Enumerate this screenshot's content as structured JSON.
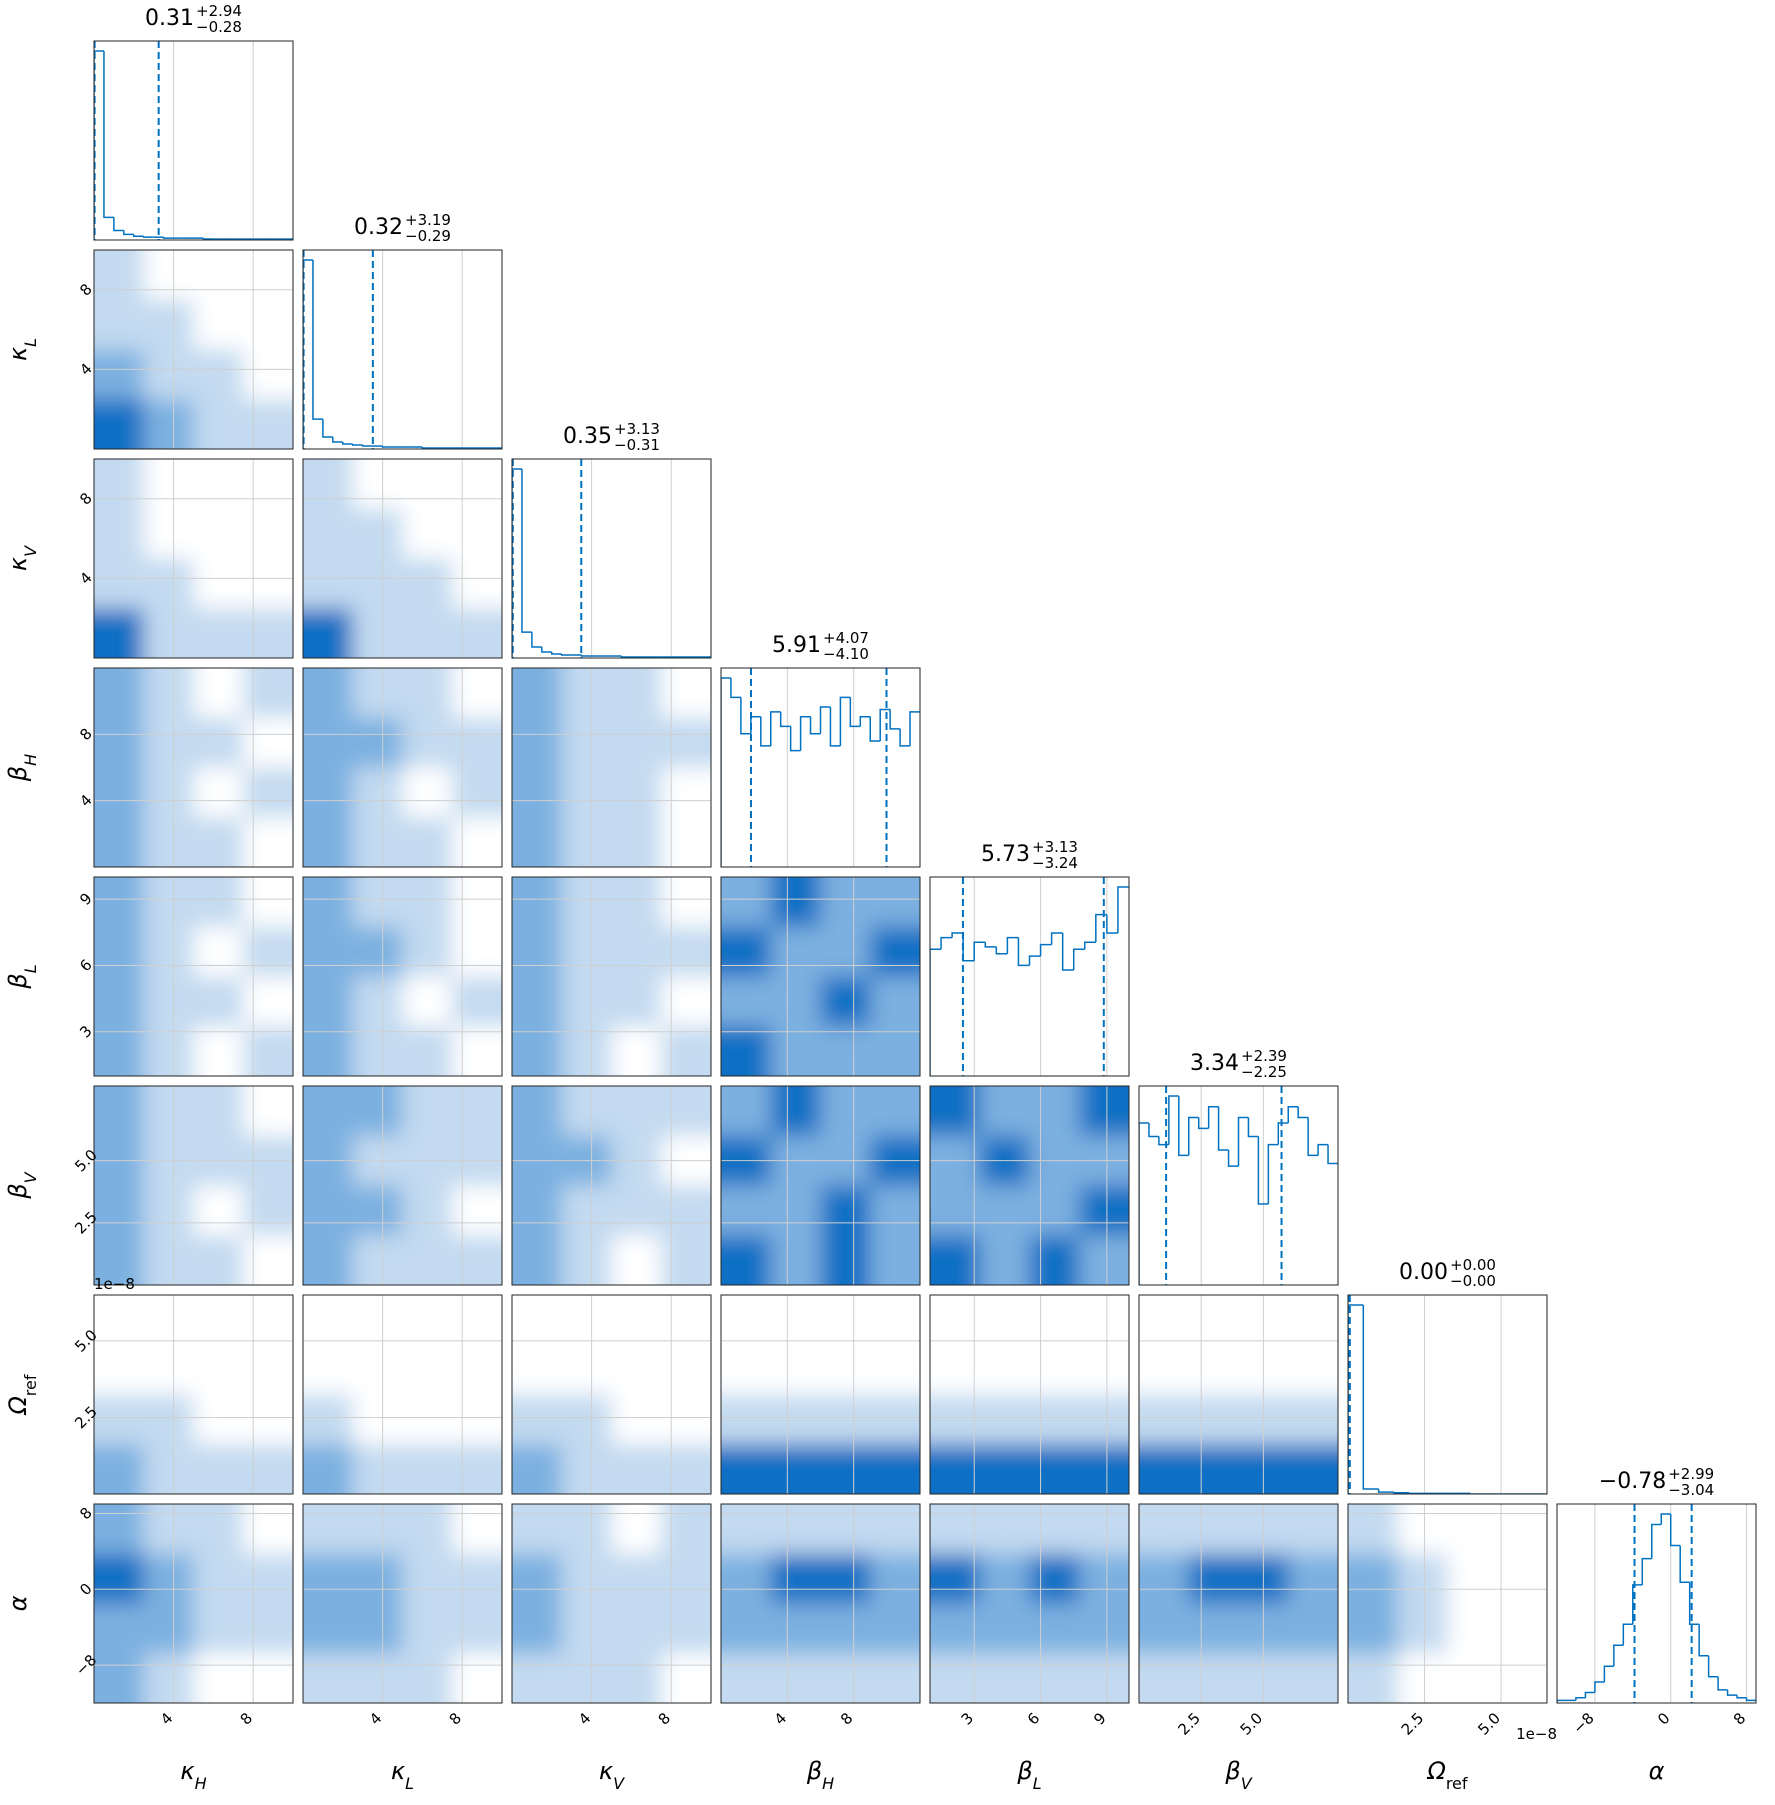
{
  "chart_data": {
    "type": "corner",
    "line_color": "#0072c1",
    "level_colors": [
      "#ffffff",
      "#c3daf0",
      "#7cb0e0",
      "#0b70c4"
    ],
    "grid": true,
    "parameters": [
      {
        "symbol": "κ",
        "sub": "H",
        "sub_style": "italic",
        "lim": [
          0,
          10
        ],
        "ticks": [
          4,
          8
        ],
        "hist": {
          "title": {
            "value": "0.31",
            "upper": "+2.94",
            "lower": "−0.28"
          },
          "bins": [
            0,
            0.5,
            1,
            1.5,
            2,
            2.5,
            3,
            3.5,
            4,
            4.5,
            5,
            5.5,
            6,
            6.5,
            7,
            7.5,
            8,
            8.5,
            9,
            9.5,
            10
          ],
          "counts": [
            200,
            24,
            10,
            6,
            4,
            3,
            3,
            2,
            2,
            2,
            2,
            1,
            1,
            1,
            1,
            1,
            1,
            1,
            1,
            1
          ],
          "quantiles": [
            0.03,
            3.25
          ]
        }
      },
      {
        "symbol": "κ",
        "sub": "L",
        "sub_style": "italic",
        "lim": [
          0,
          10
        ],
        "ticks": [
          4,
          8
        ],
        "hist": {
          "title": {
            "value": "0.32",
            "upper": "+3.19",
            "lower": "−0.29"
          },
          "bins": [
            0,
            0.5,
            1,
            1.5,
            2,
            2.5,
            3,
            3.5,
            4,
            4.5,
            5,
            5.5,
            6,
            6.5,
            7,
            7.5,
            8,
            8.5,
            9,
            9.5,
            10
          ],
          "counts": [
            190,
            30,
            12,
            7,
            5,
            4,
            3,
            3,
            2,
            2,
            2,
            2,
            1,
            1,
            1,
            1,
            1,
            1,
            1,
            1
          ],
          "quantiles": [
            0.03,
            3.51
          ]
        }
      },
      {
        "symbol": "κ",
        "sub": "V",
        "sub_style": "italic",
        "lim": [
          0,
          10
        ],
        "ticks": [
          4,
          8
        ],
        "hist": {
          "title": {
            "value": "0.35",
            "upper": "+3.13",
            "lower": "−0.31"
          },
          "bins": [
            0,
            0.5,
            1,
            1.5,
            2,
            2.5,
            3,
            3.5,
            4,
            4.5,
            5,
            5.5,
            6,
            6.5,
            7,
            7.5,
            8,
            8.5,
            9,
            9.5,
            10
          ],
          "counts": [
            190,
            26,
            11,
            6,
            4,
            3,
            3,
            2,
            2,
            2,
            2,
            1,
            1,
            1,
            1,
            1,
            1,
            1,
            1,
            1
          ],
          "quantiles": [
            0.04,
            3.48
          ]
        }
      },
      {
        "symbol": "β",
        "sub": "H",
        "sub_style": "italic",
        "lim": [
          0,
          12
        ],
        "ticks": [
          4,
          8
        ],
        "hist": {
          "title": {
            "value": "5.91",
            "upper": "+4.07",
            "lower": "−4.10"
          },
          "bins": [
            0,
            0.6,
            1.2,
            1.8,
            2.4,
            3,
            3.6,
            4.2,
            4.8,
            5.4,
            6,
            6.6,
            7.2,
            7.8,
            8.4,
            9,
            9.6,
            10.2,
            10.8,
            11.4,
            12
          ],
          "counts": [
            78,
            70,
            55,
            62,
            50,
            64,
            58,
            48,
            62,
            55,
            66,
            50,
            70,
            58,
            62,
            52,
            65,
            57,
            50,
            64
          ],
          "quantiles": [
            1.81,
            9.98
          ]
        }
      },
      {
        "symbol": "β",
        "sub": "L",
        "sub_style": "italic",
        "lim": [
          1,
          10
        ],
        "ticks": [
          3,
          6,
          9
        ],
        "hist": {
          "title": {
            "value": "5.73",
            "upper": "+3.13",
            "lower": "−3.24"
          },
          "bins": [
            1,
            1.5,
            2,
            2.5,
            3,
            3.5,
            4,
            4.5,
            5,
            5.5,
            6,
            6.5,
            7,
            7.5,
            8,
            8.5,
            9,
            9.5,
            10
          ],
          "counts": [
            55,
            60,
            62,
            50,
            58,
            56,
            53,
            60,
            48,
            52,
            57,
            62,
            46,
            55,
            58,
            70,
            62,
            82
          ],
          "quantiles": [
            2.49,
            8.86
          ]
        }
      },
      {
        "symbol": "β",
        "sub": "V",
        "sub_style": "italic",
        "lim": [
          0,
          8
        ],
        "ticks": [
          2.5,
          {
            "value": 5,
            "label": "5.0"
          }
        ],
        "hist": {
          "title": {
            "value": "3.34",
            "upper": "+2.39",
            "lower": "−2.25"
          },
          "bins": [
            0,
            0.4,
            0.8,
            1.2,
            1.6,
            2,
            2.4,
            2.8,
            3.2,
            3.6,
            4,
            4.4,
            4.8,
            5.2,
            5.6,
            6,
            6.4,
            6.8,
            7.2,
            7.6,
            8
          ],
          "counts": [
            60,
            55,
            52,
            70,
            48,
            62,
            58,
            66,
            50,
            44,
            62,
            55,
            30,
            52,
            60,
            66,
            62,
            48,
            52,
            45
          ],
          "quantiles": [
            1.09,
            5.73
          ]
        }
      },
      {
        "symbol": "Ω",
        "sub": "ref",
        "sub_style": "normal",
        "lim": [
          0,
          6.5
        ],
        "ticks": [
          2.5,
          {
            "value": 5,
            "label": "5.0"
          }
        ],
        "offset_label": "1e−8",
        "hist": {
          "title": {
            "value": "0.00",
            "upper": "+0.00",
            "lower": "−0.00"
          },
          "bins": [
            0,
            0.5,
            1,
            1.5,
            2,
            2.5,
            3,
            3.5,
            4,
            4.5,
            5,
            5.5,
            6,
            6.5
          ],
          "counts": [
            300,
            8,
            3,
            2,
            1,
            1,
            1,
            1,
            0,
            0,
            0,
            0,
            0
          ],
          "quantiles": [
            0.01,
            0.06
          ]
        }
      },
      {
        "symbol": "α",
        "lim": [
          -12,
          9
        ],
        "ticks": [
          {
            "value": -8,
            "label": "−8"
          },
          0,
          8
        ],
        "hist": {
          "title": {
            "value": "−0.78",
            "upper": "+2.99",
            "lower": "−3.04"
          },
          "bins": [
            -12,
            -11,
            -10,
            -9,
            -8,
            -7,
            -6,
            -5,
            -4,
            -3,
            -2,
            -1,
            0,
            1,
            2,
            3,
            4,
            5,
            6,
            7,
            8,
            9
          ],
          "counts": [
            1,
            1,
            2,
            4,
            8,
            14,
            22,
            30,
            45,
            55,
            68,
            72,
            60,
            46,
            30,
            18,
            10,
            5,
            3,
            2,
            1
          ],
          "quantiles": [
            -3.82,
            2.21
          ]
        }
      }
    ],
    "density": [
      [
        [
          [
            1,
            0,
            0,
            0
          ],
          [
            1,
            1,
            0,
            0
          ],
          [
            2,
            1,
            1,
            0
          ],
          [
            3,
            2,
            1,
            1
          ]
        ]
      ],
      [
        [
          [
            1,
            0,
            0,
            0
          ],
          [
            1,
            0,
            0,
            0
          ],
          [
            1,
            1,
            0,
            0
          ],
          [
            3,
            1,
            1,
            1
          ]
        ],
        [
          [
            1,
            0,
            0,
            0
          ],
          [
            1,
            1,
            0,
            0
          ],
          [
            1,
            1,
            1,
            0
          ],
          [
            3,
            1,
            1,
            1
          ]
        ]
      ],
      [
        [
          [
            2,
            1,
            0,
            1
          ],
          [
            2,
            1,
            1,
            0
          ],
          [
            2,
            1,
            0,
            1
          ],
          [
            2,
            1,
            1,
            0
          ]
        ],
        [
          [
            2,
            1,
            1,
            0
          ],
          [
            2,
            2,
            1,
            1
          ],
          [
            2,
            1,
            0,
            1
          ],
          [
            2,
            1,
            1,
            0
          ]
        ],
        [
          [
            2,
            1,
            1,
            0
          ],
          [
            2,
            1,
            1,
            1
          ],
          [
            2,
            1,
            1,
            0
          ],
          [
            2,
            1,
            1,
            0
          ]
        ]
      ],
      [
        [
          [
            2,
            1,
            1,
            0
          ],
          [
            2,
            1,
            0,
            1
          ],
          [
            2,
            1,
            1,
            0
          ],
          [
            2,
            1,
            0,
            1
          ]
        ],
        [
          [
            2,
            1,
            1,
            0
          ],
          [
            2,
            2,
            1,
            0
          ],
          [
            2,
            1,
            0,
            1
          ],
          [
            2,
            1,
            1,
            0
          ]
        ],
        [
          [
            2,
            1,
            1,
            0
          ],
          [
            2,
            1,
            1,
            1
          ],
          [
            2,
            1,
            1,
            0
          ],
          [
            2,
            1,
            0,
            1
          ]
        ],
        [
          [
            2,
            3,
            2,
            2
          ],
          [
            3,
            2,
            2,
            3
          ],
          [
            2,
            2,
            3,
            2
          ],
          [
            3,
            2,
            2,
            2
          ]
        ]
      ],
      [
        [
          [
            2,
            1,
            1,
            0
          ],
          [
            2,
            1,
            1,
            1
          ],
          [
            2,
            1,
            0,
            1
          ],
          [
            2,
            1,
            1,
            0
          ]
        ],
        [
          [
            2,
            2,
            1,
            1
          ],
          [
            2,
            1,
            1,
            1
          ],
          [
            2,
            2,
            1,
            0
          ],
          [
            2,
            1,
            1,
            1
          ]
        ],
        [
          [
            2,
            1,
            1,
            1
          ],
          [
            2,
            2,
            1,
            0
          ],
          [
            2,
            1,
            1,
            1
          ],
          [
            2,
            1,
            0,
            1
          ]
        ],
        [
          [
            2,
            3,
            2,
            2
          ],
          [
            3,
            2,
            2,
            3
          ],
          [
            2,
            2,
            3,
            2
          ],
          [
            3,
            2,
            3,
            2
          ]
        ],
        [
          [
            3,
            2,
            2,
            3
          ],
          [
            2,
            3,
            2,
            2
          ],
          [
            2,
            2,
            2,
            3
          ],
          [
            3,
            2,
            3,
            2
          ]
        ]
      ],
      [
        [
          [
            0,
            0,
            0,
            0
          ],
          [
            0,
            0,
            0,
            0
          ],
          [
            1,
            1,
            0,
            0
          ],
          [
            2,
            1,
            1,
            1
          ]
        ],
        [
          [
            0,
            0,
            0,
            0
          ],
          [
            0,
            0,
            0,
            0
          ],
          [
            1,
            0,
            0,
            0
          ],
          [
            2,
            1,
            1,
            1
          ]
        ],
        [
          [
            0,
            0,
            0,
            0
          ],
          [
            0,
            0,
            0,
            0
          ],
          [
            1,
            1,
            0,
            0
          ],
          [
            2,
            1,
            1,
            1
          ]
        ],
        [
          [
            0,
            0,
            0,
            0
          ],
          [
            0,
            0,
            0,
            0
          ],
          [
            1,
            1,
            1,
            1
          ],
          [
            3,
            3,
            3,
            3
          ]
        ],
        [
          [
            0,
            0,
            0,
            0
          ],
          [
            0,
            0,
            0,
            0
          ],
          [
            1,
            1,
            1,
            1
          ],
          [
            3,
            3,
            3,
            3
          ]
        ],
        [
          [
            0,
            0,
            0,
            0
          ],
          [
            0,
            0,
            0,
            0
          ],
          [
            1,
            1,
            1,
            1
          ],
          [
            3,
            3,
            3,
            3
          ]
        ]
      ],
      [
        [
          [
            2,
            1,
            1,
            0
          ],
          [
            3,
            2,
            1,
            1
          ],
          [
            2,
            2,
            1,
            1
          ],
          [
            2,
            1,
            0,
            0
          ]
        ],
        [
          [
            1,
            1,
            1,
            0
          ],
          [
            2,
            2,
            1,
            1
          ],
          [
            2,
            2,
            1,
            1
          ],
          [
            1,
            1,
            1,
            0
          ]
        ],
        [
          [
            1,
            1,
            0,
            1
          ],
          [
            2,
            1,
            1,
            1
          ],
          [
            2,
            1,
            1,
            1
          ],
          [
            1,
            1,
            1,
            0
          ]
        ],
        [
          [
            1,
            1,
            1,
            1
          ],
          [
            2,
            3,
            3,
            2
          ],
          [
            2,
            2,
            2,
            2
          ],
          [
            1,
            1,
            1,
            1
          ]
        ],
        [
          [
            1,
            1,
            1,
            1
          ],
          [
            3,
            2,
            3,
            2
          ],
          [
            2,
            2,
            2,
            2
          ],
          [
            1,
            1,
            1,
            1
          ]
        ],
        [
          [
            1,
            1,
            1,
            1
          ],
          [
            2,
            3,
            3,
            2
          ],
          [
            2,
            2,
            2,
            2
          ],
          [
            1,
            1,
            1,
            1
          ]
        ],
        [
          [
            1,
            0,
            0,
            0
          ],
          [
            2,
            1,
            0,
            0
          ],
          [
            2,
            1,
            0,
            0
          ],
          [
            1,
            0,
            0,
            0
          ]
        ]
      ]
    ]
  }
}
